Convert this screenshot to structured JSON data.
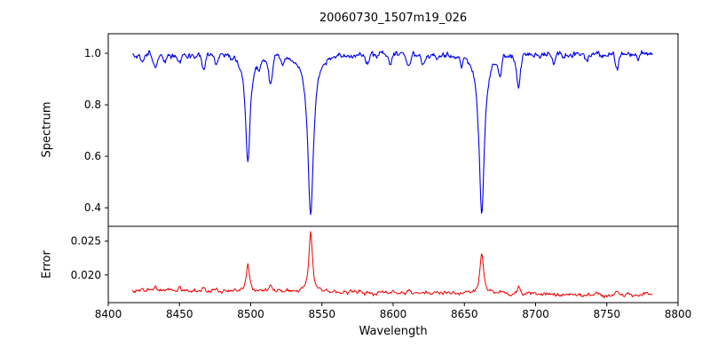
{
  "chart_data": {
    "type": "line",
    "title": "20060730_1507m19_026",
    "xlabel": "Wavelength",
    "legend": "none",
    "grid": false,
    "x_range": [
      8400,
      8800
    ],
    "x_ticks": [
      8400,
      8450,
      8500,
      8550,
      8600,
      8650,
      8700,
      8750,
      8800
    ],
    "x_data_range": [
      8417,
      8782
    ],
    "sample_step": 0.5,
    "panels": [
      {
        "name": "spectrum",
        "ylabel": "Spectrum",
        "line_color": "#0000ee",
        "ylim": [
          0.328,
          1.076
        ],
        "yticks": [
          0.4,
          0.6,
          0.8,
          1.0
        ],
        "ytick_labels": [
          "0.4",
          "0.6",
          "0.8",
          "1.0"
        ],
        "baseline_start": 0.997,
        "baseline_end": 0.997,
        "noise_sigma": 0.0065,
        "feature_sign": -1,
        "features": [
          {
            "center": 8424,
            "amplitude": 0.035,
            "width": 1.0,
            "shape": "gaussian"
          },
          {
            "center": 8433,
            "amplitude": 0.06,
            "width": 1.2,
            "shape": "gaussian"
          },
          {
            "center": 8440,
            "amplitude": 0.035,
            "width": 1.0,
            "shape": "gaussian"
          },
          {
            "center": 8450,
            "amplitude": 0.03,
            "width": 1.0,
            "shape": "gaussian"
          },
          {
            "center": 8467,
            "amplitude": 0.055,
            "width": 1.3,
            "shape": "gaussian"
          },
          {
            "center": 8476,
            "amplitude": 0.04,
            "width": 1.0,
            "shape": "gaussian"
          },
          {
            "center": 8498.0,
            "amplitude": 0.425,
            "width": 2.0,
            "shape": "lorentzian"
          },
          {
            "center": 8506,
            "amplitude": 0.035,
            "width": 1.0,
            "shape": "gaussian"
          },
          {
            "center": 8514,
            "amplitude": 0.115,
            "width": 1.3,
            "shape": "gaussian"
          },
          {
            "center": 8522,
            "amplitude": 0.03,
            "width": 1.0,
            "shape": "gaussian"
          },
          {
            "center": 8542.1,
            "amplitude": 0.63,
            "width": 2.4,
            "shape": "lorentzian"
          },
          {
            "center": 8582,
            "amplitude": 0.035,
            "width": 1.0,
            "shape": "gaussian"
          },
          {
            "center": 8598,
            "amplitude": 0.04,
            "width": 1.2,
            "shape": "gaussian"
          },
          {
            "center": 8611,
            "amplitude": 0.05,
            "width": 1.3,
            "shape": "gaussian"
          },
          {
            "center": 8621,
            "amplitude": 0.035,
            "width": 1.0,
            "shape": "gaussian"
          },
          {
            "center": 8648,
            "amplitude": 0.035,
            "width": 1.0,
            "shape": "gaussian"
          },
          {
            "center": 8662.2,
            "amplitude": 0.615,
            "width": 2.3,
            "shape": "lorentzian"
          },
          {
            "center": 8675,
            "amplitude": 0.07,
            "width": 1.2,
            "shape": "gaussian"
          },
          {
            "center": 8688,
            "amplitude": 0.12,
            "width": 1.3,
            "shape": "gaussian"
          },
          {
            "center": 8713,
            "amplitude": 0.03,
            "width": 1.0,
            "shape": "gaussian"
          },
          {
            "center": 8736,
            "amplitude": 0.03,
            "width": 1.0,
            "shape": "gaussian"
          },
          {
            "center": 8757,
            "amplitude": 0.055,
            "width": 1.2,
            "shape": "gaussian"
          },
          {
            "center": 8772,
            "amplitude": 0.03,
            "width": 1.0,
            "shape": "gaussian"
          }
        ]
      },
      {
        "name": "error",
        "ylabel": "Error",
        "line_color": "#ee0000",
        "ylim": [
          0.0159,
          0.0272
        ],
        "yticks": [
          0.02,
          0.025
        ],
        "ytick_labels": [
          "0.020",
          "0.025"
        ],
        "baseline_start": 0.0177,
        "baseline_end": 0.017,
        "noise_sigma": 0.00015,
        "feature_sign": 1,
        "features": [
          {
            "center": 8424,
            "amplitude": 0.0003,
            "width": 1.0,
            "shape": "gaussian"
          },
          {
            "center": 8433,
            "amplitude": 0.0006,
            "width": 1.1,
            "shape": "gaussian"
          },
          {
            "center": 8450,
            "amplitude": 0.0003,
            "width": 1.0,
            "shape": "gaussian"
          },
          {
            "center": 8467,
            "amplitude": 0.0005,
            "width": 1.1,
            "shape": "gaussian"
          },
          {
            "center": 8476,
            "amplitude": 0.0003,
            "width": 1.0,
            "shape": "gaussian"
          },
          {
            "center": 8498.0,
            "amplitude": 0.004,
            "width": 1.3,
            "shape": "lorentzian"
          },
          {
            "center": 8514,
            "amplitude": 0.0009,
            "width": 1.1,
            "shape": "gaussian"
          },
          {
            "center": 8542.1,
            "amplitude": 0.0088,
            "width": 1.5,
            "shape": "lorentzian"
          },
          {
            "center": 8611,
            "amplitude": 0.0004,
            "width": 1.0,
            "shape": "gaussian"
          },
          {
            "center": 8662.2,
            "amplitude": 0.006,
            "width": 1.5,
            "shape": "lorentzian"
          },
          {
            "center": 8675,
            "amplitude": 0.0005,
            "width": 1.0,
            "shape": "gaussian"
          },
          {
            "center": 8688,
            "amplitude": 0.0011,
            "width": 1.1,
            "shape": "gaussian"
          },
          {
            "center": 8757,
            "amplitude": 0.0005,
            "width": 1.0,
            "shape": "gaussian"
          },
          {
            "center": 8777,
            "amplitude": 0.0004,
            "width": 1.0,
            "shape": "gaussian"
          }
        ]
      }
    ]
  }
}
